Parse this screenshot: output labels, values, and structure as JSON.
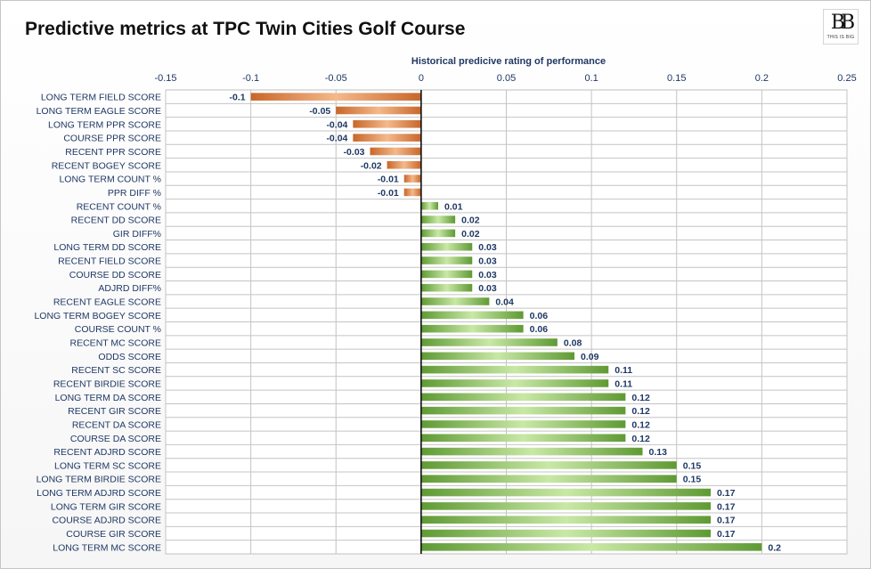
{
  "title": "Predictive metrics at TPC Twin Cities Golf Course",
  "logo": {
    "mark": "BB",
    "text": "THIS IS BIG"
  },
  "colors": {
    "negative": "#c8662a",
    "negative_light": "#f4b98b",
    "positive": "#5f9a34",
    "positive_light": "#c9e8a6",
    "label": "#1f3864"
  },
  "chart_data": {
    "type": "bar",
    "orientation": "horizontal",
    "xlabel": "Historical predicive rating of performance",
    "xlim": [
      -0.15,
      0.25
    ],
    "xticks": [
      -0.15,
      -0.1,
      -0.05,
      0,
      0.05,
      0.1,
      0.15,
      0.2,
      0.25
    ],
    "xtick_labels": [
      "-0.15",
      "-0.1",
      "-0.05",
      "0",
      "0.05",
      "0.1",
      "0.15",
      "0.2",
      "0.25"
    ],
    "x_axis_position": "top",
    "grid": true,
    "categories": [
      "LONG TERM FIELD SCORE",
      "LONG TERM EAGLE SCORE",
      "LONG TERM PPR SCORE",
      "COURSE PPR SCORE",
      "RECENT PPR SCORE",
      "RECENT BOGEY SCORE",
      "LONG TERM COUNT %",
      "PPR DIFF %",
      "RECENT COUNT %",
      "RECENT DD SCORE",
      "GIR DIFF%",
      "LONG TERM DD SCORE",
      "RECENT FIELD SCORE",
      "COURSE DD SCORE",
      "ADJRD DIFF%",
      "RECENT EAGLE SCORE",
      "LONG TERM BOGEY SCORE",
      "COURSE COUNT %",
      "RECENT MC SCORE",
      "ODDS SCORE",
      "RECENT SC SCORE",
      "RECENT BIRDIE SCORE",
      "LONG TERM DA SCORE",
      "RECENT GIR SCORE",
      "RECENT DA SCORE",
      "COURSE DA SCORE",
      "RECENT ADJRD SCORE",
      "LONG TERM SC SCORE",
      "LONG TERM BIRDIE SCORE",
      "LONG TERM ADJRD SCORE",
      "LONG TERM GIR SCORE",
      "COURSE ADJRD SCORE",
      "COURSE GIR SCORE",
      "LONG TERM MC SCORE"
    ],
    "values": [
      -0.1,
      -0.05,
      -0.04,
      -0.04,
      -0.03,
      -0.02,
      -0.01,
      -0.01,
      0.01,
      0.02,
      0.02,
      0.03,
      0.03,
      0.03,
      0.03,
      0.04,
      0.06,
      0.06,
      0.08,
      0.09,
      0.11,
      0.11,
      0.12,
      0.12,
      0.12,
      0.12,
      0.13,
      0.15,
      0.15,
      0.17,
      0.17,
      0.17,
      0.17,
      0.2
    ],
    "value_labels": [
      "-0.1",
      "-0.05",
      "-0.04",
      "-0.04",
      "-0.03",
      "-0.02",
      "-0.01",
      "-0.01",
      "0.01",
      "0.02",
      "0.02",
      "0.03",
      "0.03",
      "0.03",
      "0.03",
      "0.04",
      "0.06",
      "0.06",
      "0.08",
      "0.09",
      "0.11",
      "0.11",
      "0.12",
      "0.12",
      "0.12",
      "0.12",
      "0.13",
      "0.15",
      "0.15",
      "0.17",
      "0.17",
      "0.17",
      "0.17",
      "0.2"
    ]
  }
}
